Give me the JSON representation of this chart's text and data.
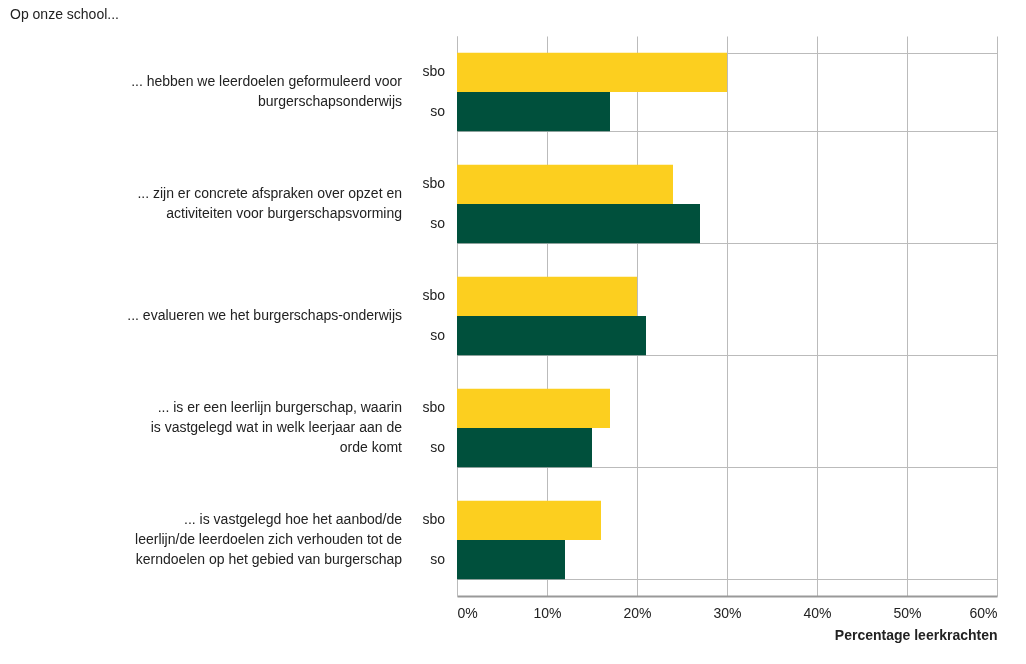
{
  "chart_data": {
    "type": "bar",
    "orientation": "horizontal",
    "title": "Op onze school...",
    "xlabel": "Percentage leerkrachten",
    "categories": [
      "... hebben we leerdoelen geformuleerd voor burgerschapsonderwijs",
      "... zijn er concrete afspraken over opzet en activiteiten voor burgerschapsvorming",
      "... evalueren we het burgerschaps-onderwijs",
      "... is er een leerlijn burgerschap, waarin is vastgelegd wat in welk leerjaar aan de orde komt",
      "... is vastgelegd hoe het aanbod/de leerlijn/de leerdoelen zich verhouden tot de kerndoelen op het gebied van burgerschap"
    ],
    "series": [
      {
        "name": "sbo",
        "color": "#fccf1f",
        "values": [
          30,
          24,
          20,
          17,
          16
        ]
      },
      {
        "name": "so",
        "color": "#00503c",
        "values": [
          17,
          27,
          21,
          15,
          12
        ]
      }
    ],
    "xlim": [
      0,
      60
    ],
    "xticks": [
      {
        "value": 0,
        "label": "0%"
      },
      {
        "value": 10,
        "label": "10%"
      },
      {
        "value": 20,
        "label": "20%"
      },
      {
        "value": 30,
        "label": "30%"
      },
      {
        "value": 40,
        "label": "40%"
      },
      {
        "value": 50,
        "label": "50%"
      },
      {
        "value": 60,
        "label": "60%"
      }
    ],
    "grid": true
  }
}
